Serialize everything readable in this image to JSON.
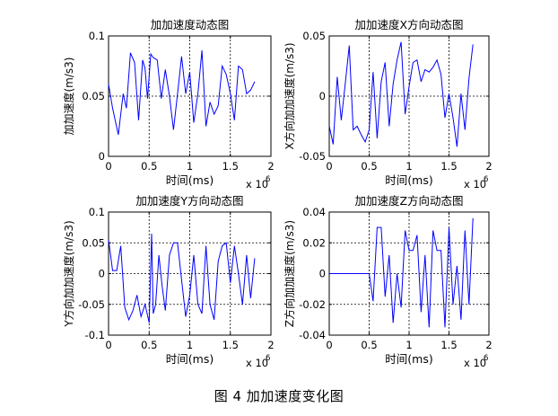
{
  "figure": {
    "caption": "图 4  加加速度变化图"
  },
  "chart_data": [
    {
      "type": "line",
      "title": "加加速度动态图",
      "xlabel": "时间(ms)",
      "ylabel": "加加速度(m/s3)",
      "x_multiplier_label": "x 10",
      "x_multiplier_exp": "6",
      "xlim": [
        0,
        2
      ],
      "ylim": [
        0,
        0.1
      ],
      "xticks": [
        0,
        0.5,
        1,
        1.5,
        2
      ],
      "xtick_labels": [
        "0",
        "0.5",
        "1",
        "1.5",
        "2"
      ],
      "yticks": [
        0,
        0.05,
        0.1
      ],
      "ytick_labels": [
        "0",
        "0.05",
        "0.1"
      ],
      "grid": true,
      "color": "#0000ff",
      "series": [
        {
          "x": [
            0,
            0.05,
            0.12,
            0.18,
            0.22,
            0.27,
            0.32,
            0.37,
            0.42,
            0.45,
            0.48,
            0.52,
            0.55,
            0.6,
            0.65,
            0.7,
            0.75,
            0.8,
            0.85,
            0.9,
            0.95,
            1.0,
            1.05,
            1.1,
            1.15,
            1.2,
            1.25,
            1.3,
            1.35,
            1.4,
            1.45,
            1.5,
            1.55,
            1.6,
            1.65,
            1.7,
            1.75,
            1.8
          ],
          "y": [
            0.06,
            0.04,
            0.018,
            0.052,
            0.04,
            0.086,
            0.078,
            0.03,
            0.08,
            0.073,
            0.048,
            0.085,
            0.082,
            0.08,
            0.048,
            0.072,
            0.05,
            0.022,
            0.052,
            0.083,
            0.052,
            0.07,
            0.028,
            0.052,
            0.088,
            0.025,
            0.045,
            0.035,
            0.042,
            0.075,
            0.068,
            0.052,
            0.03,
            0.075,
            0.072,
            0.052,
            0.055,
            0.062
          ]
        }
      ]
    },
    {
      "type": "line",
      "title": "加加速度X方向动态图",
      "xlabel": "时间(ms)",
      "ylabel": "X方向加加速度(m/s3)",
      "x_multiplier_label": "x 10",
      "x_multiplier_exp": "6",
      "xlim": [
        0,
        2
      ],
      "ylim": [
        -0.05,
        0.05
      ],
      "xticks": [
        0,
        0.5,
        1,
        1.5,
        2
      ],
      "xtick_labels": [
        "0",
        "0.5",
        "1",
        "1.5",
        "2"
      ],
      "yticks": [
        -0.05,
        0,
        0.05
      ],
      "ytick_labels": [
        "-0.05",
        "0",
        "0.05"
      ],
      "grid": true,
      "color": "#0000ff",
      "series": [
        {
          "x": [
            0,
            0.05,
            0.1,
            0.15,
            0.2,
            0.25,
            0.3,
            0.35,
            0.4,
            0.45,
            0.5,
            0.55,
            0.6,
            0.65,
            0.7,
            0.75,
            0.8,
            0.85,
            0.9,
            0.95,
            1.0,
            1.05,
            1.1,
            1.15,
            1.2,
            1.25,
            1.3,
            1.35,
            1.4,
            1.45,
            1.5,
            1.55,
            1.6,
            1.65,
            1.7,
            1.75,
            1.8
          ],
          "y": [
            -0.025,
            -0.04,
            0.016,
            -0.02,
            0.01,
            0.042,
            -0.028,
            -0.025,
            -0.032,
            -0.038,
            -0.028,
            0.02,
            -0.035,
            0.012,
            0.028,
            -0.025,
            0.01,
            0.03,
            0.045,
            -0.015,
            0.008,
            0.028,
            0.03,
            0.012,
            0.022,
            0.02,
            0.024,
            0.03,
            0.018,
            -0.018,
            0.002,
            -0.018,
            -0.042,
            0.002,
            -0.028,
            0.015,
            0.043
          ]
        }
      ]
    },
    {
      "type": "line",
      "title": "加加速度Y方向动态图",
      "xlabel": "时间(ms)",
      "ylabel": "Y方向加加速度(m/s3)",
      "x_multiplier_label": "x 10",
      "x_multiplier_exp": "6",
      "xlim": [
        0,
        2
      ],
      "ylim": [
        -0.1,
        0.1
      ],
      "xticks": [
        0,
        0.5,
        1,
        1.5,
        2
      ],
      "xtick_labels": [
        "0",
        "0.5",
        "1",
        "1.5",
        "2"
      ],
      "yticks": [
        -0.1,
        -0.05,
        0,
        0.05,
        0.1
      ],
      "ytick_labels": [
        "-0.1",
        "-0.05",
        "0",
        "0.05",
        "0.1"
      ],
      "grid": true,
      "color": "#0000ff",
      "series": [
        {
          "x": [
            0,
            0.05,
            0.1,
            0.15,
            0.2,
            0.25,
            0.3,
            0.35,
            0.4,
            0.45,
            0.5,
            0.53,
            0.55,
            0.58,
            0.62,
            0.66,
            0.7,
            0.75,
            0.8,
            0.85,
            0.9,
            0.95,
            1.0,
            1.05,
            1.1,
            1.15,
            1.2,
            1.25,
            1.3,
            1.35,
            1.4,
            1.45,
            1.5,
            1.55,
            1.6,
            1.65,
            1.7,
            1.75,
            1.8
          ],
          "y": [
            0.055,
            0.005,
            0.005,
            0.045,
            -0.055,
            -0.075,
            -0.06,
            -0.035,
            -0.07,
            -0.05,
            -0.08,
            0.065,
            -0.065,
            -0.05,
            0.03,
            -0.02,
            -0.06,
            0.03,
            0.05,
            0.05,
            -0.01,
            -0.07,
            -0.035,
            0.03,
            -0.05,
            -0.065,
            0.045,
            -0.05,
            -0.075,
            0.02,
            0.045,
            0.05,
            -0.015,
            0.045,
            0.0,
            -0.05,
            0.03,
            -0.04,
            0.025
          ]
        }
      ]
    },
    {
      "type": "line",
      "title": "加加速度Z方向动态图",
      "xlabel": "时间(ms)",
      "ylabel": "Z方向加加速度(m/s3)",
      "x_multiplier_label": "x 10",
      "x_multiplier_exp": "6",
      "xlim": [
        0,
        2
      ],
      "ylim": [
        -0.04,
        0.04
      ],
      "xticks": [
        0,
        0.5,
        1,
        1.5,
        2
      ],
      "xtick_labels": [
        "0",
        "0.5",
        "1",
        "1.5",
        "2"
      ],
      "yticks": [
        -0.04,
        -0.02,
        0,
        0.02,
        0.04
      ],
      "ytick_labels": [
        "-0.04",
        "-0.02",
        "0",
        "0.02",
        "0.04"
      ],
      "grid": true,
      "color": "#0000ff",
      "series": [
        {
          "x": [
            0,
            0.1,
            0.2,
            0.3,
            0.4,
            0.45,
            0.5,
            0.55,
            0.6,
            0.65,
            0.7,
            0.75,
            0.8,
            0.85,
            0.9,
            0.95,
            1.0,
            1.05,
            1.1,
            1.15,
            1.2,
            1.25,
            1.3,
            1.35,
            1.4,
            1.45,
            1.5,
            1.55,
            1.6,
            1.65,
            1.7,
            1.75,
            1.8
          ],
          "y": [
            0,
            0,
            0,
            0,
            0,
            0,
            0,
            -0.018,
            0.03,
            0.03,
            -0.015,
            0.012,
            -0.032,
            0.0,
            -0.022,
            0.028,
            0.015,
            0.015,
            0.025,
            -0.025,
            0.012,
            -0.035,
            0.028,
            0.015,
            0.015,
            -0.035,
            0.03,
            -0.02,
            0.005,
            -0.03,
            0.028,
            -0.02,
            0.036
          ]
        }
      ]
    }
  ]
}
